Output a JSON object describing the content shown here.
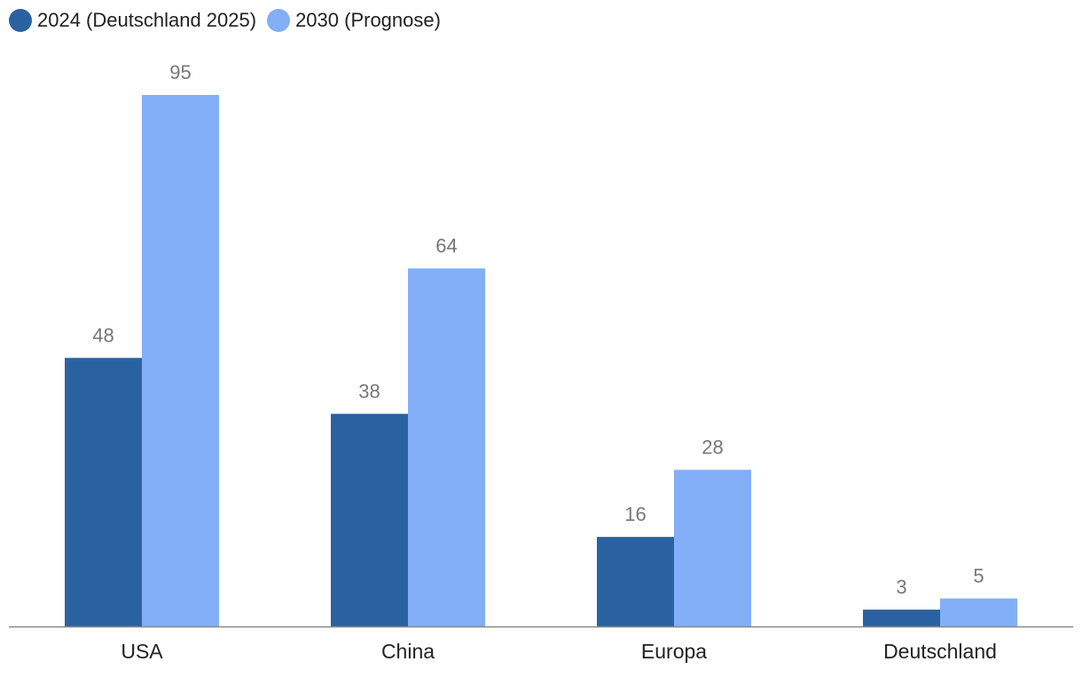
{
  "chart_data": {
    "type": "bar",
    "categories": [
      "USA",
      "China",
      "Europa",
      "Deutschland"
    ],
    "series": [
      {
        "name": "2024 (Deutschland 2025)",
        "color": "#2a62a1",
        "values": [
          48,
          38,
          16,
          3
        ]
      },
      {
        "name": "2030 (Prognose)",
        "color": "#82aff7",
        "values": [
          95,
          64,
          28,
          5
        ]
      }
    ],
    "title": "",
    "xlabel": "",
    "ylabel": "",
    "ylim": [
      0,
      95
    ],
    "legend": "top-left",
    "grid": false
  }
}
